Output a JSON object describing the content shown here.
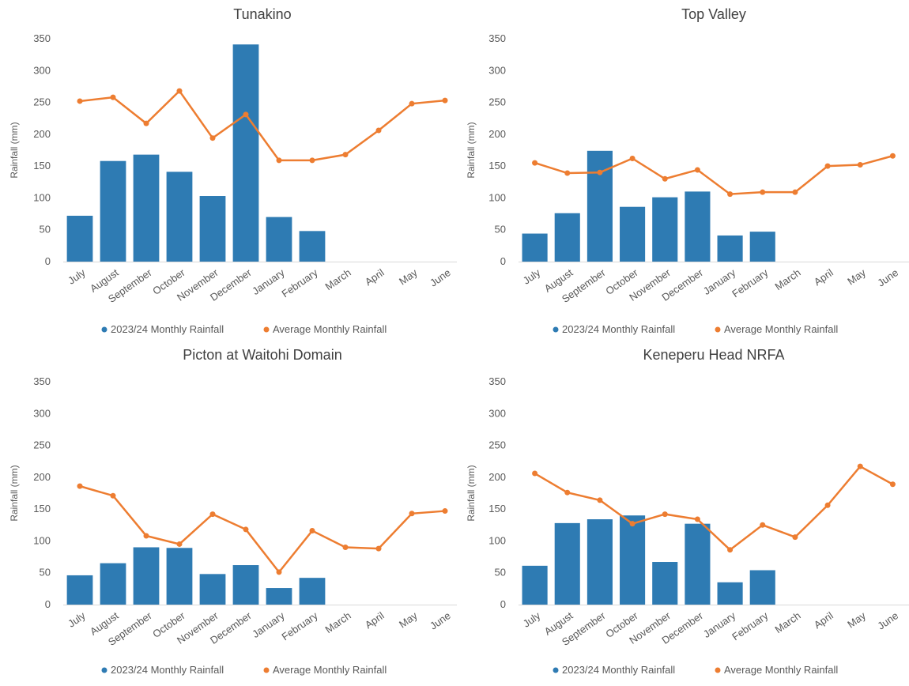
{
  "colors": {
    "bar": "#2e7bb3",
    "line": "#ed7d31",
    "text": "#595959"
  },
  "legend": {
    "bar_label": "2023/24 Monthly Rainfall",
    "line_label": "Average Monthly Rainfall"
  },
  "chart_data": [
    {
      "type": "bar+line",
      "title": "Tunakino",
      "ylabel": "Rainfall (mm)",
      "ylim": [
        0,
        350
      ],
      "yticks": [
        0,
        50,
        100,
        150,
        200,
        250,
        300,
        350
      ],
      "categories": [
        "July",
        "August",
        "September",
        "October",
        "November",
        "December",
        "January",
        "February",
        "March",
        "April",
        "May",
        "June"
      ],
      "series": [
        {
          "name": "2023/24 Monthly Rainfall",
          "kind": "bar",
          "values": [
            72,
            158,
            168,
            141,
            103,
            341,
            70,
            48,
            null,
            null,
            null,
            null
          ]
        },
        {
          "name": "Average Monthly Rainfall",
          "kind": "line",
          "values": [
            252,
            258,
            217,
            268,
            194,
            231,
            159,
            159,
            168,
            206,
            248,
            253
          ]
        }
      ],
      "legend_position": "bottom"
    },
    {
      "type": "bar+line",
      "title": "Top Valley",
      "ylabel": "Rainfall (mm)",
      "ylim": [
        0,
        350
      ],
      "yticks": [
        0,
        50,
        100,
        150,
        200,
        250,
        300,
        350
      ],
      "categories": [
        "July",
        "August",
        "September",
        "October",
        "November",
        "December",
        "January",
        "February",
        "March",
        "April",
        "May",
        "June"
      ],
      "series": [
        {
          "name": "2023/24 Monthly Rainfall",
          "kind": "bar",
          "values": [
            44,
            76,
            174,
            86,
            101,
            110,
            41,
            47,
            null,
            null,
            null,
            null
          ]
        },
        {
          "name": "Average Monthly Rainfall",
          "kind": "line",
          "values": [
            155,
            139,
            140,
            162,
            130,
            144,
            106,
            109,
            109,
            150,
            152,
            166
          ]
        }
      ],
      "legend_position": "bottom"
    },
    {
      "type": "bar+line",
      "title": "Picton at Waitohi Domain",
      "ylabel": "Rainfall (mm)",
      "ylim": [
        0,
        350
      ],
      "yticks": [
        0,
        50,
        100,
        150,
        200,
        250,
        300,
        350
      ],
      "categories": [
        "July",
        "August",
        "September",
        "October",
        "November",
        "December",
        "January",
        "February",
        "March",
        "April",
        "May",
        "June"
      ],
      "series": [
        {
          "name": "2023/24 Monthly Rainfall",
          "kind": "bar",
          "values": [
            46,
            65,
            90,
            89,
            48,
            62,
            26,
            42,
            null,
            null,
            null,
            null
          ]
        },
        {
          "name": "Average Monthly Rainfall",
          "kind": "line",
          "values": [
            186,
            171,
            108,
            95,
            142,
            118,
            51,
            116,
            90,
            88,
            143,
            147
          ]
        }
      ],
      "legend_position": "bottom"
    },
    {
      "type": "bar+line",
      "title": "Keneperu Head NRFA",
      "ylabel": "Rainfall (mm)",
      "ylim": [
        0,
        350
      ],
      "yticks": [
        0,
        50,
        100,
        150,
        200,
        250,
        300,
        350
      ],
      "categories": [
        "July",
        "August",
        "September",
        "October",
        "November",
        "December",
        "January",
        "February",
        "March",
        "April",
        "May",
        "June"
      ],
      "series": [
        {
          "name": "2023/24 Monthly Rainfall",
          "kind": "bar",
          "values": [
            61,
            128,
            134,
            140,
            67,
            127,
            35,
            54,
            null,
            null,
            null,
            null
          ]
        },
        {
          "name": "Average Monthly Rainfall",
          "kind": "line",
          "values": [
            206,
            176,
            164,
            127,
            142,
            134,
            86,
            125,
            106,
            156,
            217,
            189
          ]
        }
      ],
      "legend_position": "bottom"
    }
  ]
}
